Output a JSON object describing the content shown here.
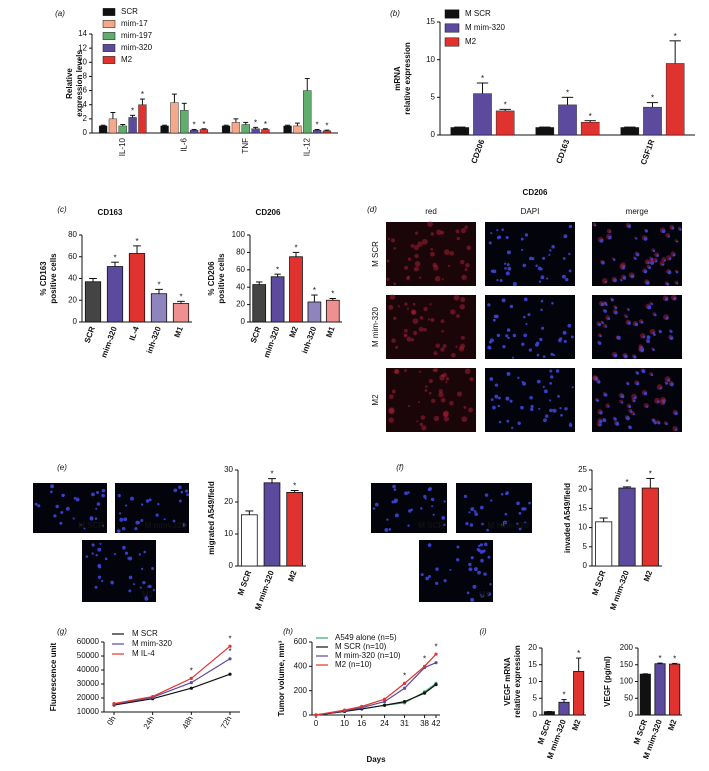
{
  "chart_data": [
    {
      "type": "bar",
      "panel": "(a)",
      "ylabel": [
        "Relative",
        "expression levels"
      ],
      "marker": "*",
      "categories": [
        "IL-10",
        "IL-6",
        "TNF",
        "IL-12"
      ],
      "ylim": [
        0,
        14
      ],
      "yticks": [
        0,
        2,
        4,
        6,
        8,
        10,
        12,
        14
      ],
      "series": [
        {
          "name": "SCR",
          "color": "#111111",
          "values": [
            1,
            1,
            1,
            1
          ],
          "errors": [
            0.1,
            0.1,
            0.1,
            0.1
          ],
          "stars": [
            false,
            false,
            false,
            false
          ]
        },
        {
          "name": "mim-17",
          "color": "#f4a98c",
          "values": [
            2,
            4.3,
            1.5,
            1
          ],
          "errors": [
            0.9,
            1.2,
            0.5,
            0.4
          ],
          "stars": [
            false,
            false,
            false,
            false
          ]
        },
        {
          "name": "mim-197",
          "color": "#5fae6e",
          "values": [
            1,
            3.2,
            1.2,
            6
          ],
          "errors": [
            0.2,
            1,
            0.3,
            1.7
          ],
          "stars": [
            false,
            false,
            false,
            false
          ]
        },
        {
          "name": "mim-320",
          "color": "#5b4a9e",
          "values": [
            2.2,
            0.4,
            0.6,
            0.4
          ],
          "errors": [
            0.3,
            0.1,
            0.2,
            0.1
          ],
          "stars": [
            true,
            true,
            true,
            true
          ]
        },
        {
          "name": "M2",
          "color": "#e0322e",
          "values": [
            4,
            0.5,
            0.5,
            0.3
          ],
          "errors": [
            0.8,
            0.1,
            0.1,
            0.1
          ],
          "stars": [
            true,
            true,
            true,
            true
          ]
        }
      ]
    },
    {
      "type": "bar",
      "panel": "(b)",
      "ylabel": [
        "mRNA",
        "relative expression"
      ],
      "marker": "*",
      "categories": [
        "CD206",
        "CD163",
        "CSF1R"
      ],
      "ylim": [
        0,
        15
      ],
      "yticks": [
        0,
        5,
        10,
        15
      ],
      "series": [
        {
          "name": "M SCR",
          "color": "#111111",
          "values": [
            1,
            1,
            1
          ],
          "errors": [
            0.05,
            0.05,
            0.05
          ],
          "stars": [
            false,
            false,
            false
          ]
        },
        {
          "name": "M mim-320",
          "color": "#5b4a9e",
          "values": [
            5.5,
            4,
            3.7
          ],
          "errors": [
            1.4,
            1,
            0.6
          ],
          "stars": [
            true,
            true,
            true
          ]
        },
        {
          "name": "M2",
          "color": "#e0322e",
          "values": [
            3.2,
            1.7,
            9.5
          ],
          "errors": [
            0.2,
            0.2,
            3
          ],
          "stars": [
            true,
            true,
            true
          ]
        }
      ]
    },
    {
      "type": "bar",
      "panel": "(c)",
      "title": "CD163",
      "ylabel": [
        "% CD163",
        "positive cells"
      ],
      "marker": "*",
      "categories": [
        "SCR",
        "mim-320",
        "IL-4",
        "inh-320",
        "M1"
      ],
      "values": [
        37,
        51,
        63,
        26,
        17
      ],
      "errors": [
        3,
        4,
        7,
        4,
        2
      ],
      "stars": [
        false,
        true,
        true,
        true,
        true
      ],
      "colors": [
        "#444444",
        "#5b4a9e",
        "#e0322e",
        "#8f84bd",
        "#ef8f8f"
      ],
      "ylim": [
        0,
        80
      ],
      "yticks": [
        0,
        20,
        40,
        60,
        80
      ]
    },
    {
      "type": "bar",
      "title": "CD206",
      "ylabel": [
        "% CD206",
        "positive cells"
      ],
      "marker": "*",
      "categories": [
        "SCR",
        "mim-320",
        "M2",
        "inh-320",
        "M1"
      ],
      "values": [
        43,
        52,
        75,
        23,
        25
      ],
      "errors": [
        3,
        3,
        5,
        8,
        2
      ],
      "stars": [
        false,
        true,
        true,
        true,
        true
      ],
      "colors": [
        "#444444",
        "#5b4a9e",
        "#e0322e",
        "#8f84bd",
        "#ef8f8f"
      ],
      "ylim": [
        0,
        100
      ],
      "yticks": [
        0,
        20,
        40,
        60,
        80,
        100
      ]
    },
    {
      "type": "bar",
      "ylabel": [
        "migrated A549/field"
      ],
      "marker": "*",
      "categories": [
        "M SCR",
        "M mim-320",
        "M2"
      ],
      "values": [
        16,
        26,
        23
      ],
      "errors": [
        1.2,
        1.3,
        0.6
      ],
      "stars": [
        false,
        true,
        true
      ],
      "colors": [
        "#ffffff",
        "#5b4a9e",
        "#e0322e"
      ],
      "ylim": [
        0,
        30
      ],
      "yticks": [
        0,
        10,
        20,
        30
      ]
    },
    {
      "type": "bar",
      "ylabel": [
        "invaded A549/field"
      ],
      "marker": "*",
      "categories": [
        "M SCR",
        "M mim-320",
        "M2"
      ],
      "values": [
        11.5,
        20.3,
        20.3
      ],
      "errors": [
        1,
        0.3,
        2.5
      ],
      "stars": [
        false,
        true,
        true
      ],
      "colors": [
        "#ffffff",
        "#5b4a9e",
        "#e0322e"
      ],
      "ylim": [
        0,
        25
      ],
      "yticks": [
        0,
        5,
        10,
        15,
        20,
        25
      ]
    },
    {
      "type": "line",
      "panel": "(g)",
      "ylabel": [
        "Fluorescence unit"
      ],
      "marker": "*",
      "categories": [
        "0h",
        "24h",
        "48h",
        "72h"
      ],
      "ylim": [
        10000,
        60000
      ],
      "yticks": [
        10000,
        20000,
        30000,
        40000,
        50000,
        60000
      ],
      "series": [
        {
          "name": "M SCR",
          "color": "#111111",
          "values": [
            15000,
            19500,
            27000,
            37000
          ],
          "stars": [
            false,
            false,
            false,
            false
          ]
        },
        {
          "name": "M mim-320",
          "color": "#5b4a9e",
          "values": [
            15500,
            20500,
            31000,
            48000
          ],
          "stars": [
            false,
            false,
            false,
            true
          ]
        },
        {
          "name": "M IL-4",
          "color": "#e0322e",
          "values": [
            16000,
            21000,
            34000,
            57000
          ],
          "stars": [
            false,
            false,
            true,
            true
          ]
        }
      ]
    },
    {
      "type": "line",
      "panel": "(h)",
      "ylabel": [
        "Tumor volume, mm³"
      ],
      "xlabel": "Days",
      "marker": "*",
      "x": [
        0,
        10,
        16,
        24,
        31,
        38,
        42
      ],
      "xlim": [
        0,
        42
      ],
      "xticks": [
        0,
        10,
        16,
        24,
        31,
        38,
        42
      ],
      "ylim": [
        0,
        600
      ],
      "yticks": [
        0,
        200,
        400,
        600
      ],
      "series": [
        {
          "name": "A549 alone (n=5)",
          "color": "#3aa66a",
          "values": [
            0,
            30,
            50,
            80,
            100,
            190,
            260
          ],
          "stars": [
            false,
            false,
            false,
            false,
            false,
            false,
            false
          ]
        },
        {
          "name": "M SCR (n=10)",
          "color": "#111111",
          "values": [
            0,
            30,
            50,
            80,
            110,
            180,
            250
          ],
          "stars": [
            false,
            false,
            false,
            false,
            false,
            false,
            false
          ]
        },
        {
          "name": "M mim-320 (n=10)",
          "color": "#5b4a9e",
          "values": [
            0,
            35,
            60,
            110,
            220,
            390,
            430
          ],
          "stars": [
            false,
            false,
            false,
            false,
            false,
            false,
            false
          ]
        },
        {
          "name": "M2 (n=10)",
          "color": "#e0322e",
          "values": [
            0,
            40,
            70,
            130,
            260,
            400,
            500
          ],
          "stars": [
            false,
            false,
            false,
            false,
            true,
            true,
            true
          ]
        }
      ]
    },
    {
      "type": "bar",
      "panel": "(i)",
      "ylabel": [
        "VEGF mRNA",
        "relative expression"
      ],
      "marker": "*",
      "categories": [
        "M SCR",
        "M mim-320",
        "M2"
      ],
      "values": [
        1,
        3.8,
        13
      ],
      "errors": [
        0.05,
        0.8,
        4
      ],
      "stars": [
        false,
        true,
        true
      ],
      "colors": [
        "#111111",
        "#5b4a9e",
        "#e0322e"
      ],
      "ylim": [
        0,
        20
      ],
      "yticks": [
        0,
        5,
        10,
        15,
        20
      ]
    },
    {
      "type": "bar",
      "ylabel": [
        "VEGF (pg/ml)"
      ],
      "marker": "*",
      "categories": [
        "M SCR",
        "M mim-320",
        "M2"
      ],
      "values": [
        122,
        153,
        152
      ],
      "errors": [
        1,
        2,
        2
      ],
      "stars": [
        false,
        true,
        true
      ],
      "colors": [
        "#111111",
        "#5b4a9e",
        "#e0322e"
      ],
      "ylim": [
        0,
        200
      ],
      "yticks": [
        0,
        50,
        100,
        150,
        200
      ]
    }
  ],
  "image_panels": [
    {
      "panel": "(d)",
      "title": "CD206",
      "columns": [
        "red",
        "DAPI",
        "merge"
      ],
      "rows": [
        "M SCR",
        "M mim-320",
        "M2"
      ]
    },
    {
      "panel": "(e)",
      "images": [
        "M SCR",
        "M mim-320",
        "M2"
      ]
    },
    {
      "panel": "(f)",
      "images": [
        "M SCR",
        "M mim-320",
        "M2"
      ]
    }
  ]
}
